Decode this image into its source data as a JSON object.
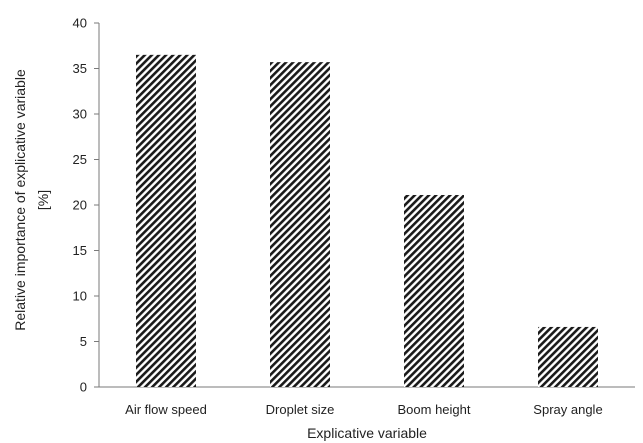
{
  "chart_data": {
    "type": "bar",
    "categories": [
      "Air flow  speed",
      "Droplet size",
      "Boom height",
      "Spray angle"
    ],
    "values": [
      36.5,
      35.7,
      21.1,
      6.6
    ],
    "xlabel": "Explicative variable",
    "ylabel_line1": "Relative importance of explicative variable",
    "ylabel_line2": "[%]",
    "ylim": [
      0,
      40
    ],
    "yticks": [
      0,
      5,
      10,
      15,
      20,
      25,
      30,
      35,
      40
    ],
    "grid": false,
    "legend": "none",
    "fill": "diagonal-hatch",
    "colors": {
      "bar": "#1a1a1a",
      "axis": "#7a7a7a",
      "text": "#222222",
      "background": "#ffffff"
    }
  }
}
